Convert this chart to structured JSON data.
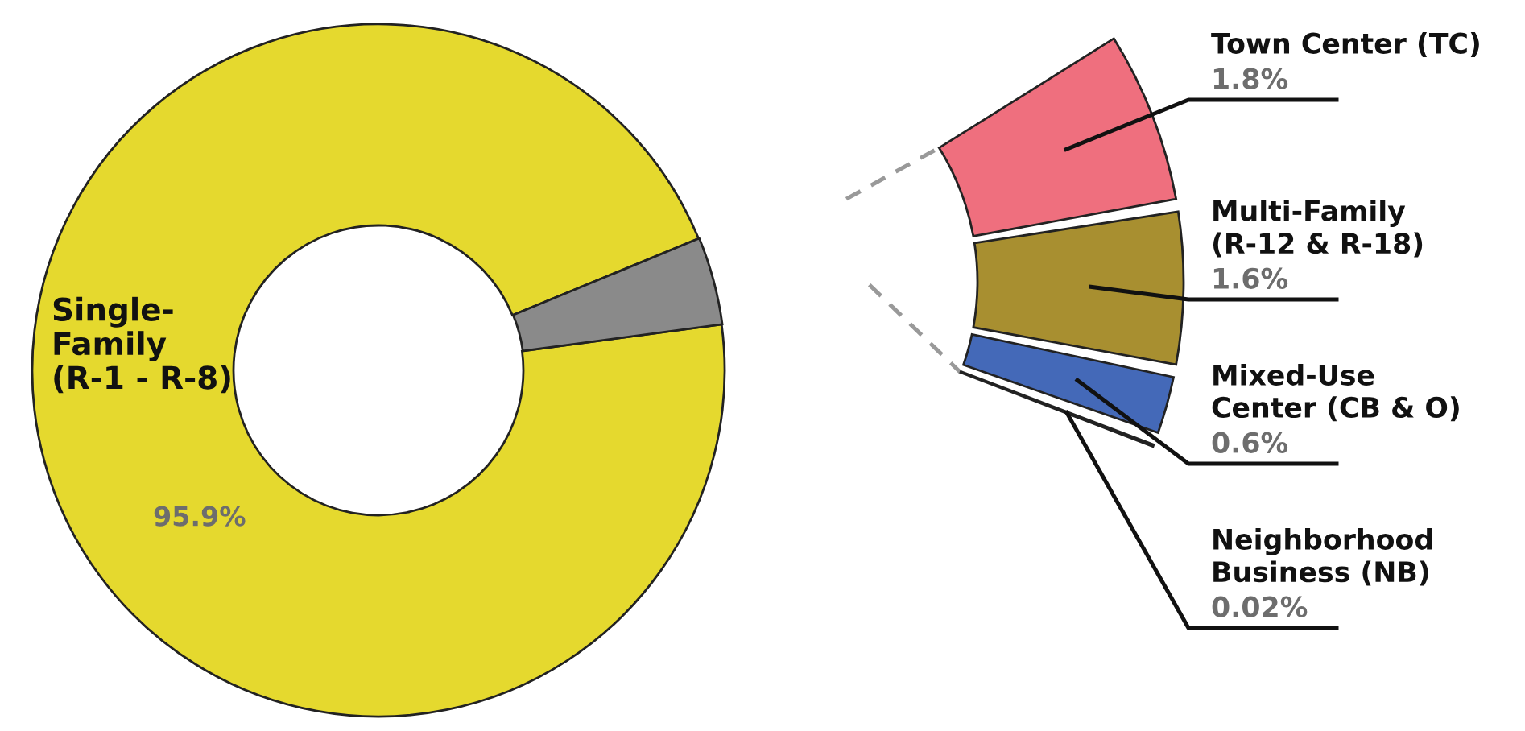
{
  "chart_data": [
    {
      "type": "donut",
      "categories": [
        "Single-\nFamily\n(R-1 - R-8)",
        null
      ],
      "values": [
        95.9,
        4.1
      ],
      "colors": [
        "#e5d92e",
        "#8a8a8a"
      ],
      "value_labels": [
        "95.9%",
        null
      ]
    },
    {
      "type": "other",
      "categories": [
        "Town Center (TC)",
        "Multi-Family\n(R-12 & R-18)",
        "Mixed-Use\nCenter (CB & O)",
        "Neighborhood\nBusiness (NB)"
      ],
      "values": [
        1.8,
        1.6,
        0.6,
        0.02
      ],
      "colors": [
        "#ef6f7e",
        "#a88f30",
        "#4469b8",
        "#6cb4dc"
      ],
      "value_labels": [
        "1.8%",
        "1.6%",
        "0.6%",
        "0.02%"
      ]
    }
  ]
}
